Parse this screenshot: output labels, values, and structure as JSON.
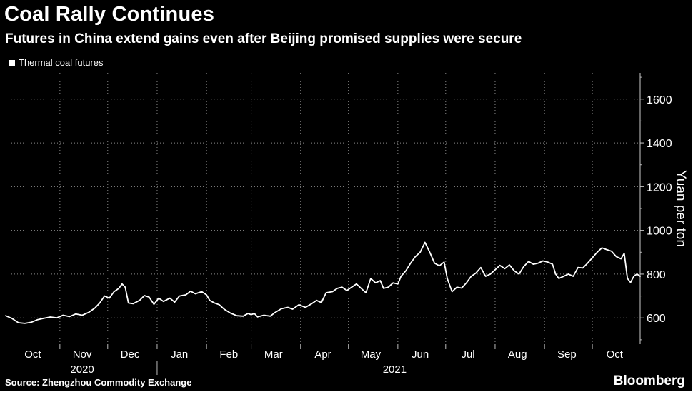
{
  "chart_data": {
    "type": "line",
    "title": "Coal Rally Continues",
    "subtitle": "Futures in China extend gains even after Beijing promised supplies were secure",
    "ylabel": "Yuan per ton",
    "xlabel": "",
    "ylim": [
      480,
      1720
    ],
    "yticks": [
      600,
      800,
      1000,
      1200,
      1400,
      1600
    ],
    "xlim": [
      "2020-09-28",
      "2021-10-31"
    ],
    "month_labels": [
      {
        "label": "Oct",
        "date": "2020-10-15"
      },
      {
        "label": "Nov",
        "date": "2020-11-15"
      },
      {
        "label": "Dec",
        "date": "2020-12-15"
      },
      {
        "label": "Jan",
        "date": "2021-01-15"
      },
      {
        "label": "Feb",
        "date": "2021-02-15"
      },
      {
        "label": "Mar",
        "date": "2021-03-15"
      },
      {
        "label": "Apr",
        "date": "2021-04-15"
      },
      {
        "label": "May",
        "date": "2021-05-15"
      },
      {
        "label": "Jun",
        "date": "2021-06-15"
      },
      {
        "label": "Jul",
        "date": "2021-07-15"
      },
      {
        "label": "Aug",
        "date": "2021-08-15"
      },
      {
        "label": "Sep",
        "date": "2021-09-15"
      },
      {
        "label": "Oct",
        "date": "2021-10-15"
      }
    ],
    "year_labels": [
      {
        "label": "2020",
        "date": "2020-11-15"
      },
      {
        "label": "2021",
        "date": "2021-05-30"
      }
    ],
    "year_divider_date": "2021-01-01",
    "legend": "top-left",
    "grid": true,
    "series": [
      {
        "name": "Thermal coal futures",
        "color": "#ffffff",
        "points": [
          [
            "2020-09-28",
            610
          ],
          [
            "2020-10-02",
            597
          ],
          [
            "2020-10-06",
            578
          ],
          [
            "2020-10-10",
            575
          ],
          [
            "2020-10-14",
            580
          ],
          [
            "2020-10-18",
            592
          ],
          [
            "2020-10-22",
            598
          ],
          [
            "2020-10-26",
            604
          ],
          [
            "2020-10-30",
            600
          ],
          [
            "2020-11-03",
            612
          ],
          [
            "2020-11-07",
            606
          ],
          [
            "2020-11-11",
            618
          ],
          [
            "2020-11-15",
            612
          ],
          [
            "2020-11-19",
            625
          ],
          [
            "2020-11-23",
            645
          ],
          [
            "2020-11-26",
            668
          ],
          [
            "2020-11-29",
            700
          ],
          [
            "2020-12-02",
            690
          ],
          [
            "2020-12-05",
            720
          ],
          [
            "2020-12-08",
            735
          ],
          [
            "2020-12-10",
            755
          ],
          [
            "2020-12-12",
            740
          ],
          [
            "2020-12-14",
            668
          ],
          [
            "2020-12-17",
            665
          ],
          [
            "2020-12-21",
            680
          ],
          [
            "2020-12-24",
            702
          ],
          [
            "2020-12-27",
            695
          ],
          [
            "2020-12-30",
            662
          ],
          [
            "2021-01-02",
            690
          ],
          [
            "2021-01-05",
            675
          ],
          [
            "2021-01-09",
            690
          ],
          [
            "2021-01-12",
            672
          ],
          [
            "2021-01-15",
            700
          ],
          [
            "2021-01-19",
            705
          ],
          [
            "2021-01-22",
            722
          ],
          [
            "2021-01-25",
            710
          ],
          [
            "2021-01-29",
            720
          ],
          [
            "2021-02-01",
            705
          ],
          [
            "2021-02-03",
            680
          ],
          [
            "2021-02-06",
            668
          ],
          [
            "2021-02-09",
            660
          ],
          [
            "2021-02-12",
            640
          ],
          [
            "2021-02-16",
            622
          ],
          [
            "2021-02-20",
            610
          ],
          [
            "2021-02-24",
            608
          ],
          [
            "2021-02-27",
            620
          ],
          [
            "2021-03-01",
            615
          ],
          [
            "2021-03-03",
            620
          ],
          [
            "2021-03-05",
            605
          ],
          [
            "2021-03-09",
            612
          ],
          [
            "2021-03-13",
            608
          ],
          [
            "2021-03-16",
            625
          ],
          [
            "2021-03-20",
            642
          ],
          [
            "2021-03-24",
            648
          ],
          [
            "2021-03-27",
            640
          ],
          [
            "2021-03-31",
            660
          ],
          [
            "2021-04-04",
            648
          ],
          [
            "2021-04-08",
            665
          ],
          [
            "2021-04-11",
            680
          ],
          [
            "2021-04-14",
            670
          ],
          [
            "2021-04-17",
            715
          ],
          [
            "2021-04-21",
            720
          ],
          [
            "2021-04-24",
            735
          ],
          [
            "2021-04-27",
            740
          ],
          [
            "2021-04-30",
            725
          ],
          [
            "2021-05-03",
            740
          ],
          [
            "2021-05-06",
            755
          ],
          [
            "2021-05-09",
            735
          ],
          [
            "2021-05-12",
            715
          ],
          [
            "2021-05-15",
            780
          ],
          [
            "2021-05-18",
            760
          ],
          [
            "2021-05-21",
            770
          ],
          [
            "2021-05-23",
            735
          ],
          [
            "2021-05-26",
            740
          ],
          [
            "2021-05-29",
            760
          ],
          [
            "2021-06-01",
            755
          ],
          [
            "2021-06-03",
            790
          ],
          [
            "2021-06-06",
            815
          ],
          [
            "2021-06-09",
            850
          ],
          [
            "2021-06-12",
            880
          ],
          [
            "2021-06-15",
            900
          ],
          [
            "2021-06-18",
            945
          ],
          [
            "2021-06-21",
            900
          ],
          [
            "2021-06-24",
            850
          ],
          [
            "2021-06-27",
            838
          ],
          [
            "2021-06-30",
            855
          ],
          [
            "2021-07-02",
            780
          ],
          [
            "2021-07-05",
            720
          ],
          [
            "2021-07-08",
            740
          ],
          [
            "2021-07-11",
            736
          ],
          [
            "2021-07-14",
            760
          ],
          [
            "2021-07-17",
            790
          ],
          [
            "2021-07-20",
            805
          ],
          [
            "2021-07-23",
            830
          ],
          [
            "2021-07-26",
            790
          ],
          [
            "2021-07-29",
            800
          ],
          [
            "2021-08-01",
            820
          ],
          [
            "2021-08-04",
            840
          ],
          [
            "2021-08-07",
            825
          ],
          [
            "2021-08-10",
            842
          ],
          [
            "2021-08-13",
            815
          ],
          [
            "2021-08-16",
            800
          ],
          [
            "2021-08-19",
            835
          ],
          [
            "2021-08-22",
            858
          ],
          [
            "2021-08-25",
            845
          ],
          [
            "2021-08-28",
            850
          ],
          [
            "2021-08-31",
            860
          ],
          [
            "2021-09-03",
            855
          ],
          [
            "2021-09-06",
            845
          ],
          [
            "2021-09-08",
            800
          ],
          [
            "2021-09-10",
            780
          ],
          [
            "2021-09-13",
            790
          ],
          [
            "2021-09-16",
            800
          ],
          [
            "2021-09-19",
            790
          ],
          [
            "2021-09-22",
            830
          ],
          [
            "2021-09-25",
            828
          ],
          [
            "2021-09-28",
            850
          ],
          [
            "2021-10-01",
            875
          ],
          [
            "2021-10-04",
            900
          ],
          [
            "2021-10-07",
            920
          ],
          [
            "2021-10-10",
            912
          ],
          [
            "2021-10-13",
            905
          ],
          [
            "2021-10-16",
            880
          ],
          [
            "2021-10-19",
            870
          ],
          [
            "2021-10-21",
            895
          ],
          [
            "2021-10-23",
            780
          ],
          [
            "2021-10-25",
            762
          ],
          [
            "2021-10-27",
            790
          ],
          [
            "2021-10-29",
            800
          ],
          [
            "2021-10-31",
            790
          ]
        ]
      }
    ]
  },
  "source": "Source: Zhengzhou Commodity Exchange",
  "brand": "Bloomberg"
}
